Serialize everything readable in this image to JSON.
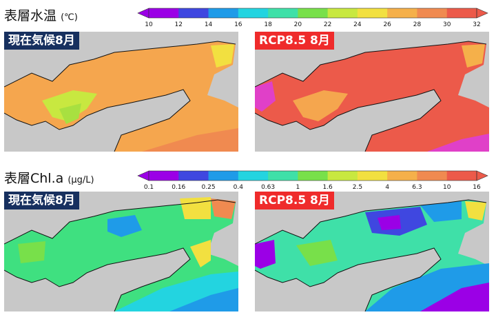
{
  "temperature": {
    "title": "表層水温",
    "unit": "(℃)",
    "colorbar": {
      "ticks": [
        "10",
        "12",
        "14",
        "16",
        "18",
        "20",
        "22",
        "24",
        "26",
        "28",
        "30",
        "32"
      ],
      "colors": [
        "#9b00e6",
        "#3f47e0",
        "#1f9be8",
        "#23d4e0",
        "#3fe0a8",
        "#78e04a",
        "#c8e840",
        "#f2e040",
        "#f5b04a",
        "#f08a50",
        "#ec5a4a"
      ]
    },
    "panels": [
      {
        "label": "現在気候8月"
      },
      {
        "label": "RCP8.5  8月"
      }
    ]
  },
  "chlorophyll": {
    "title": "表層Chl.a",
    "unit": "(μg/L)",
    "colorbar": {
      "ticks": [
        "0.1",
        "0.16",
        "0.25",
        "0.4",
        "0.63",
        "1",
        "1.6",
        "2.5",
        "4",
        "6.3",
        "10",
        "16"
      ],
      "colors": [
        "#9b00e6",
        "#3f47e0",
        "#1f9be8",
        "#23d4e0",
        "#3fe0a8",
        "#78e04a",
        "#c8e840",
        "#f2e040",
        "#f5b04a",
        "#f08a50",
        "#ec5a4a"
      ]
    },
    "panels": [
      {
        "label": "現在気候8月"
      },
      {
        "label": "RCP8.5  8月"
      }
    ]
  },
  "colors": {
    "land": "#c8c8c8",
    "current_label_bg": "#17305f",
    "rcp_label_bg": "#ef2b2b"
  }
}
